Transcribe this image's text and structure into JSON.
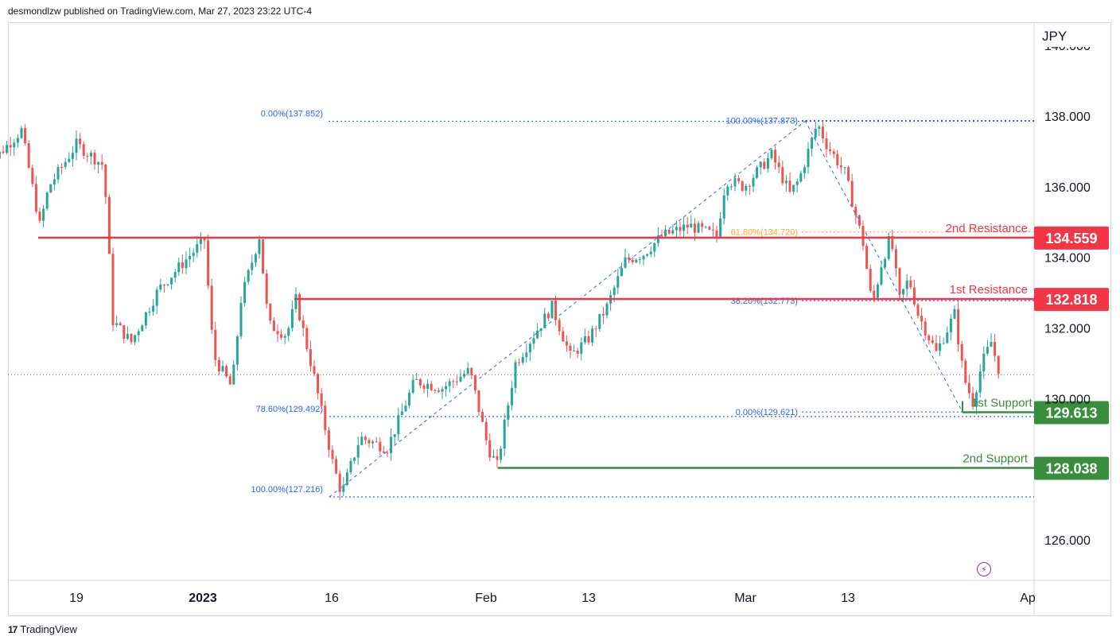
{
  "header": {
    "publisher_line": "desmondlzw published on TradingView.com, Mar 27, 2023 23:22 UTC-4"
  },
  "footer": {
    "brand": "TradingView",
    "logo": "17"
  },
  "chart_data": {
    "type": "candlestick",
    "currency": "JPY",
    "ylim": [
      125.0,
      140.0
    ],
    "y_ticks": [
      {
        "value": 126,
        "label": "126.000"
      },
      {
        "value": 130,
        "label": "130.000"
      },
      {
        "value": 132,
        "label": "132.000"
      },
      {
        "value": 134,
        "label": "134.000"
      },
      {
        "value": 136,
        "label": "136.000"
      },
      {
        "value": 138,
        "label": "138.000"
      },
      {
        "value": 140,
        "label": "140.000"
      }
    ],
    "x_ticks": [
      "19",
      "2023",
      "16",
      "Feb",
      "13",
      "Mar",
      "13",
      "Ap"
    ],
    "last_price": 130.67,
    "colors": {
      "up": "#26a69a",
      "down": "#ef5350",
      "resistance": "#f23645",
      "support": "#388e3c",
      "fib": "#2962ff",
      "fib_gold": "#f9a825"
    },
    "price_path": [
      {
        "date": "2022-12-09",
        "close": 136.5
      },
      {
        "date": "2022-12-13",
        "close": 137.6
      },
      {
        "date": "2022-12-15",
        "close": 134.9
      },
      {
        "date": "2022-12-16",
        "close": 136.0
      },
      {
        "date": "2022-12-19",
        "close": 137.2
      },
      {
        "date": "2022-12-22",
        "close": 136.6
      },
      {
        "date": "2022-12-23",
        "close": 132.2
      },
      {
        "date": "2022-12-25",
        "close": 131.6
      },
      {
        "date": "2022-12-28",
        "close": 133.1
      },
      {
        "date": "2023-01-02",
        "close": 134.5
      },
      {
        "date": "2023-01-03",
        "close": 131.2
      },
      {
        "date": "2023-01-05",
        "close": 130.3
      },
      {
        "date": "2023-01-06",
        "close": 132.8
      },
      {
        "date": "2023-01-08",
        "close": 134.6
      },
      {
        "date": "2023-01-09",
        "close": 132.1
      },
      {
        "date": "2023-01-11",
        "close": 131.8
      },
      {
        "date": "2023-01-12",
        "close": 132.8
      },
      {
        "date": "2023-01-14",
        "close": 130.6
      },
      {
        "date": "2023-01-16",
        "close": 128.2
      },
      {
        "date": "2023-01-17",
        "close": 127.3
      },
      {
        "date": "2023-01-19",
        "close": 128.9
      },
      {
        "date": "2023-01-22",
        "close": 128.6
      },
      {
        "date": "2023-01-25",
        "close": 130.5
      },
      {
        "date": "2023-01-28",
        "close": 130.3
      },
      {
        "date": "2023-01-31",
        "close": 130.8
      },
      {
        "date": "2023-02-02",
        "close": 128.6
      },
      {
        "date": "2023-02-03",
        "close": 128.1
      },
      {
        "date": "2023-02-05",
        "close": 131.0
      },
      {
        "date": "2023-02-07",
        "close": 131.8
      },
      {
        "date": "2023-02-09",
        "close": 132.6
      },
      {
        "date": "2023-02-11",
        "close": 131.2
      },
      {
        "date": "2023-02-13",
        "close": 131.7
      },
      {
        "date": "2023-02-15",
        "close": 132.6
      },
      {
        "date": "2023-02-17",
        "close": 133.9
      },
      {
        "date": "2023-02-19",
        "close": 134.1
      },
      {
        "date": "2023-02-21",
        "close": 134.6
      },
      {
        "date": "2023-02-24",
        "close": 134.9
      },
      {
        "date": "2023-02-27",
        "close": 134.6
      },
      {
        "date": "2023-02-28",
        "close": 136.2
      },
      {
        "date": "2023-03-02",
        "close": 136.0
      },
      {
        "date": "2023-03-03",
        "close": 136.3
      },
      {
        "date": "2023-03-05",
        "close": 136.9
      },
      {
        "date": "2023-03-07",
        "close": 135.8
      },
      {
        "date": "2023-03-08",
        "close": 136.2
      },
      {
        "date": "2023-03-10",
        "close": 137.8
      },
      {
        "date": "2023-03-11",
        "close": 137.2
      },
      {
        "date": "2023-03-13",
        "close": 136.4
      },
      {
        "date": "2023-03-15",
        "close": 134.4
      },
      {
        "date": "2023-03-16",
        "close": 132.6
      },
      {
        "date": "2023-03-17",
        "close": 133.8
      },
      {
        "date": "2023-03-18",
        "close": 134.6
      },
      {
        "date": "2023-03-19",
        "close": 132.8
      },
      {
        "date": "2023-03-20",
        "close": 133.4
      },
      {
        "date": "2023-03-21",
        "close": 132.4
      },
      {
        "date": "2023-03-23",
        "close": 131.3
      },
      {
        "date": "2023-03-25",
        "close": 132.4
      },
      {
        "date": "2023-03-26",
        "close": 130.6
      },
      {
        "date": "2023-03-27",
        "close": 129.9
      },
      {
        "date": "2023-03-28",
        "close": 131.0
      },
      {
        "date": "2023-03-29",
        "close": 131.6
      },
      {
        "date": "2023-03-30",
        "close": 130.67
      }
    ],
    "levels": [
      {
        "name": "2nd Resistance",
        "label": "2nd Resistance",
        "value": 134.559,
        "value_label": "134.559",
        "kind": "resistance"
      },
      {
        "name": "1st Resistance",
        "label": "1st Resistance",
        "value": 132.818,
        "value_label": "132.818",
        "kind": "resistance"
      },
      {
        "name": "1st Support",
        "label": "1st Support",
        "value": 129.613,
        "value_label": "129.613",
        "kind": "support"
      },
      {
        "name": "2nd Support",
        "label": "2nd Support",
        "value": 128.038,
        "value_label": "128.038",
        "kind": "support"
      }
    ],
    "fib_left": [
      {
        "label": "0.00%(137.852)",
        "value": 137.852
      },
      {
        "label": "78.60%(129.492)",
        "value": 129.492
      },
      {
        "label": "100.00%(127.216)",
        "value": 127.216
      }
    ],
    "fib_right": [
      {
        "label": "100.00%(137.873)",
        "value": 137.873
      },
      {
        "label": "61.80%(134.720)",
        "value": 134.72
      },
      {
        "label": "38.20%(132.773)",
        "value": 132.773
      },
      {
        "label": "0.00%(129.621)",
        "value": 129.621
      }
    ]
  }
}
